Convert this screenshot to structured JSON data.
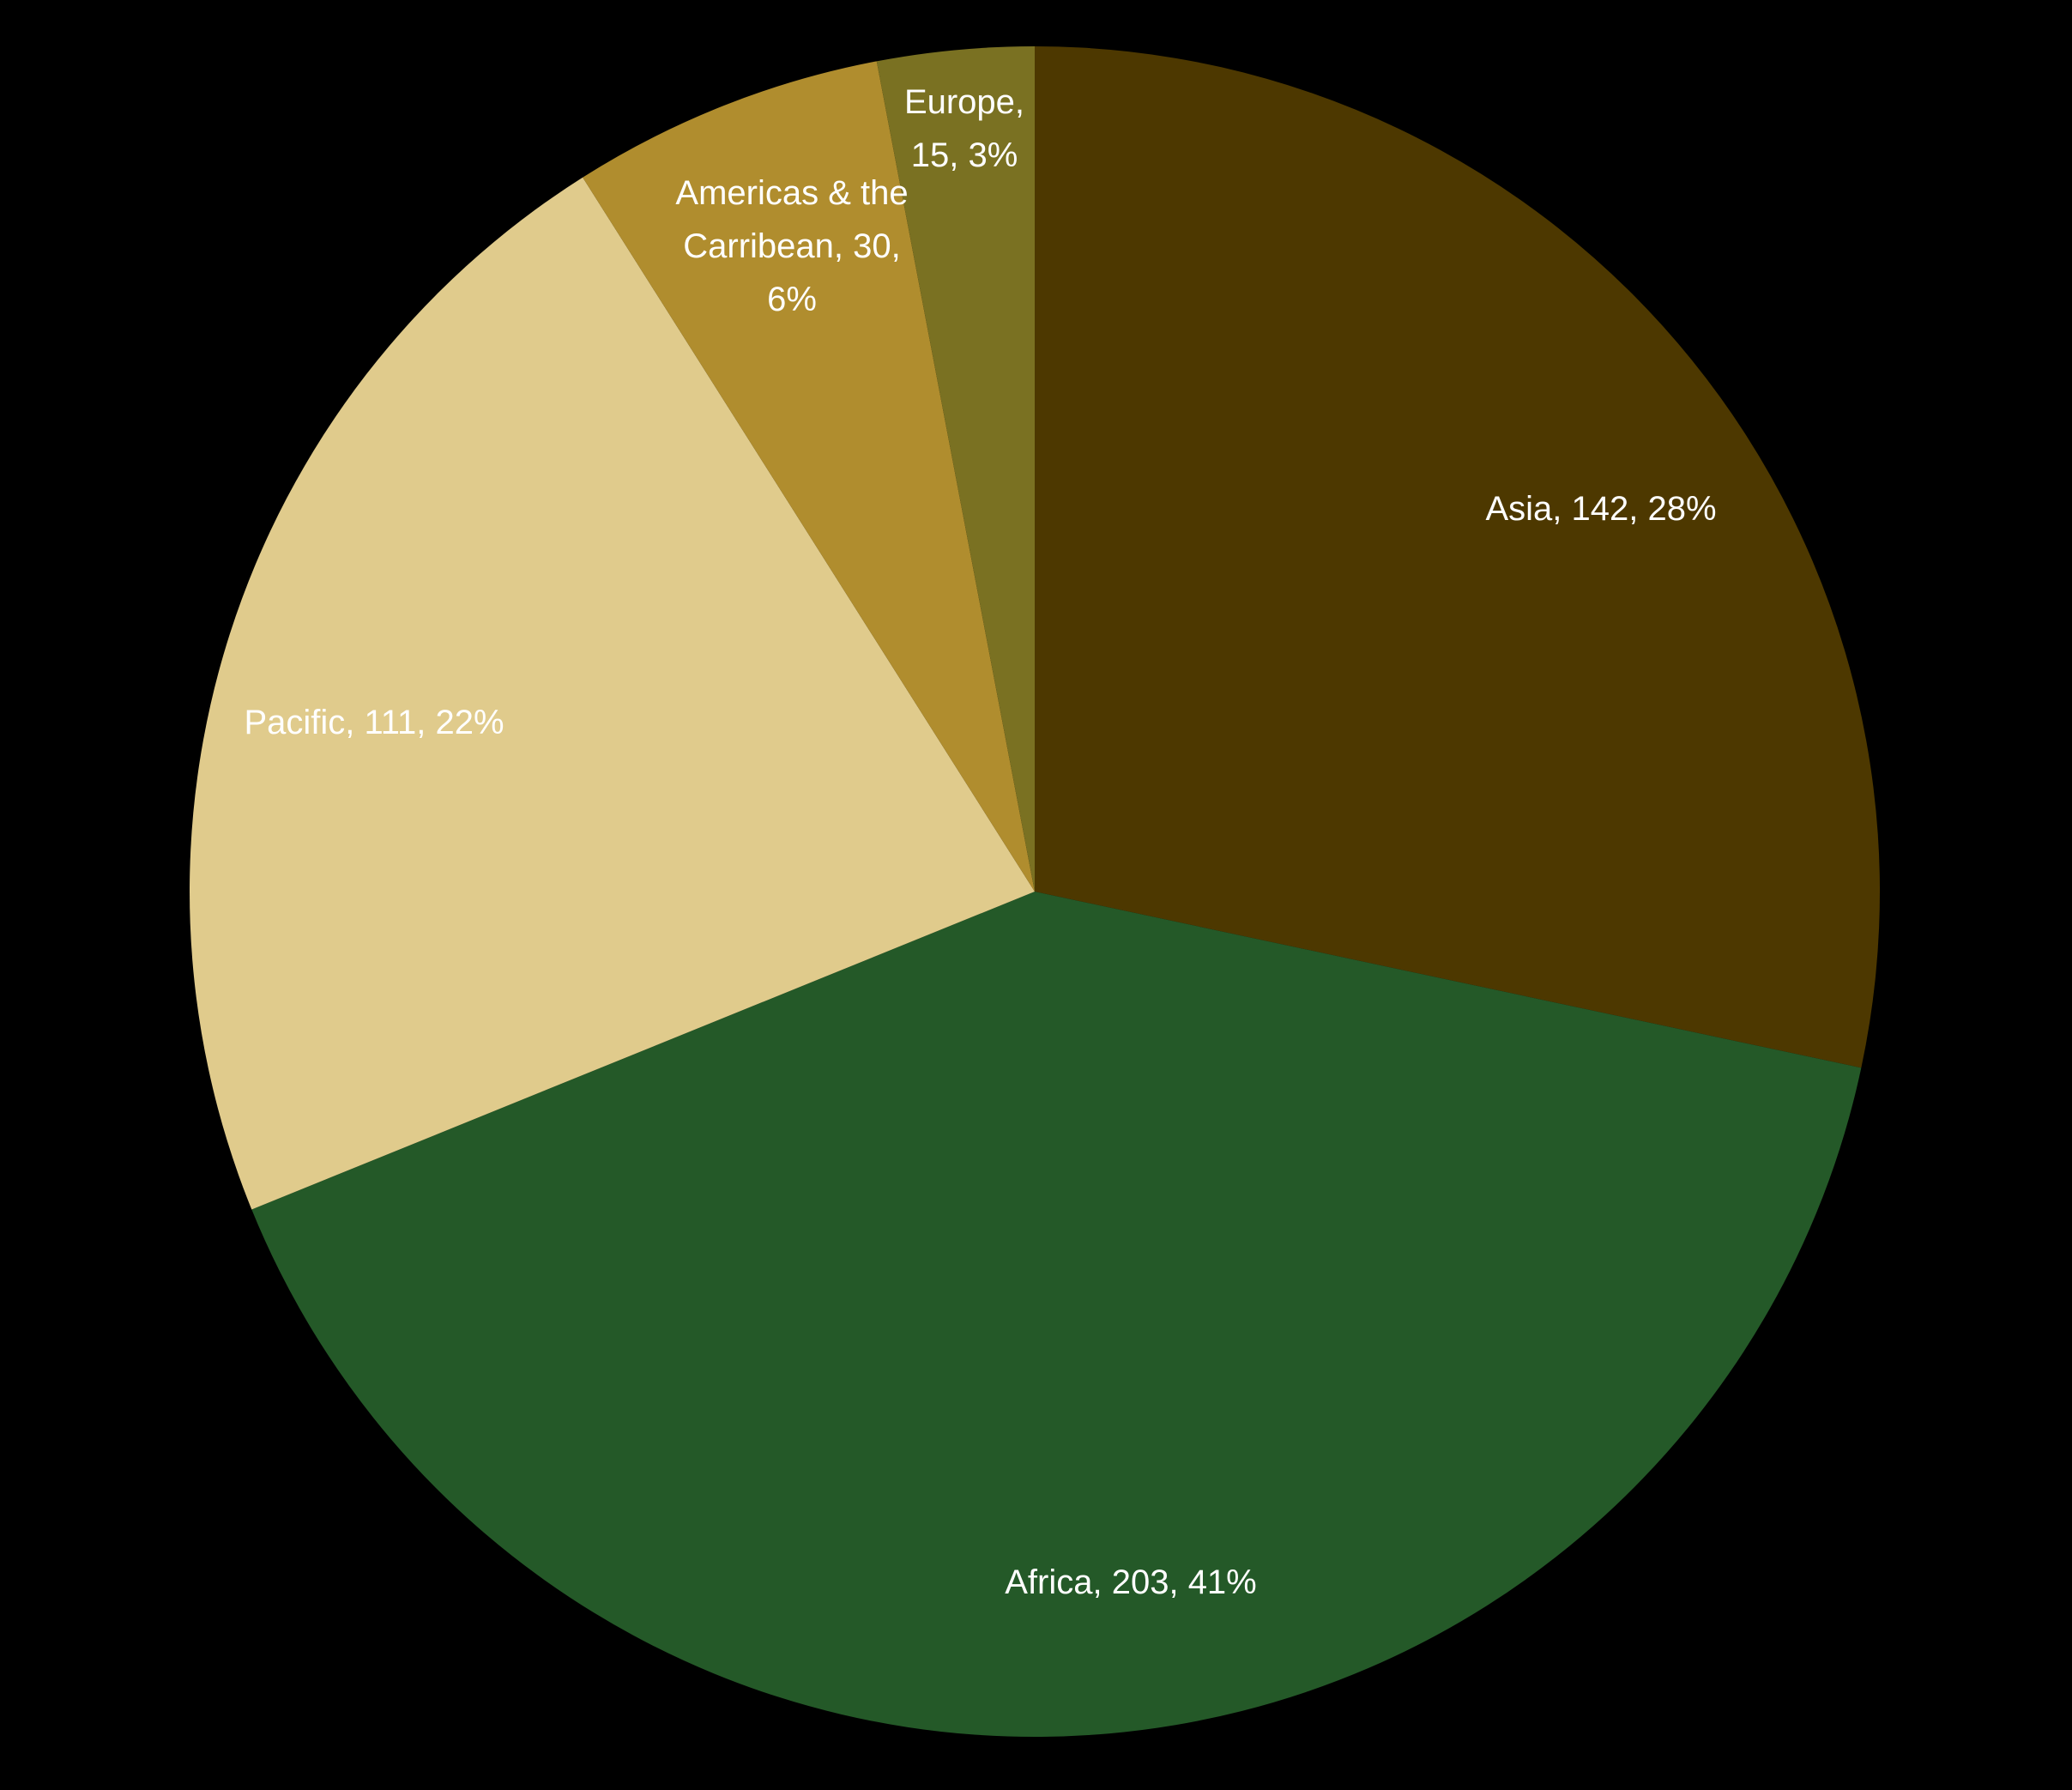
{
  "chart_data": {
    "type": "pie",
    "start_position": "top",
    "direction": "clockwise",
    "background": "#000000",
    "slices": [
      {
        "label": "Asia",
        "value": 142,
        "percent": "28%",
        "color": "#4d3800",
        "label_lines": [
          "Asia, 142, 28%"
        ]
      },
      {
        "label": "Africa",
        "value": 203,
        "percent": "41%",
        "color": "#245928",
        "label_lines": [
          "Africa, 203, 41%"
        ]
      },
      {
        "label": "Pacific",
        "value": 111,
        "percent": "22%",
        "color": "#e0cb8c",
        "label_lines": [
          "Pacific, 111, 22%"
        ]
      },
      {
        "label": "Americas & the Carribean",
        "value": 30,
        "percent": "6%",
        "color": "#b08d2e",
        "label_lines": [
          "Americas & the",
          "Carribean, 30,",
          "6%"
        ]
      },
      {
        "label": "Europe",
        "value": 15,
        "percent": "3%",
        "color": "#7a7122",
        "label_lines": [
          "Europe,",
          "15, 3%"
        ]
      }
    ]
  }
}
